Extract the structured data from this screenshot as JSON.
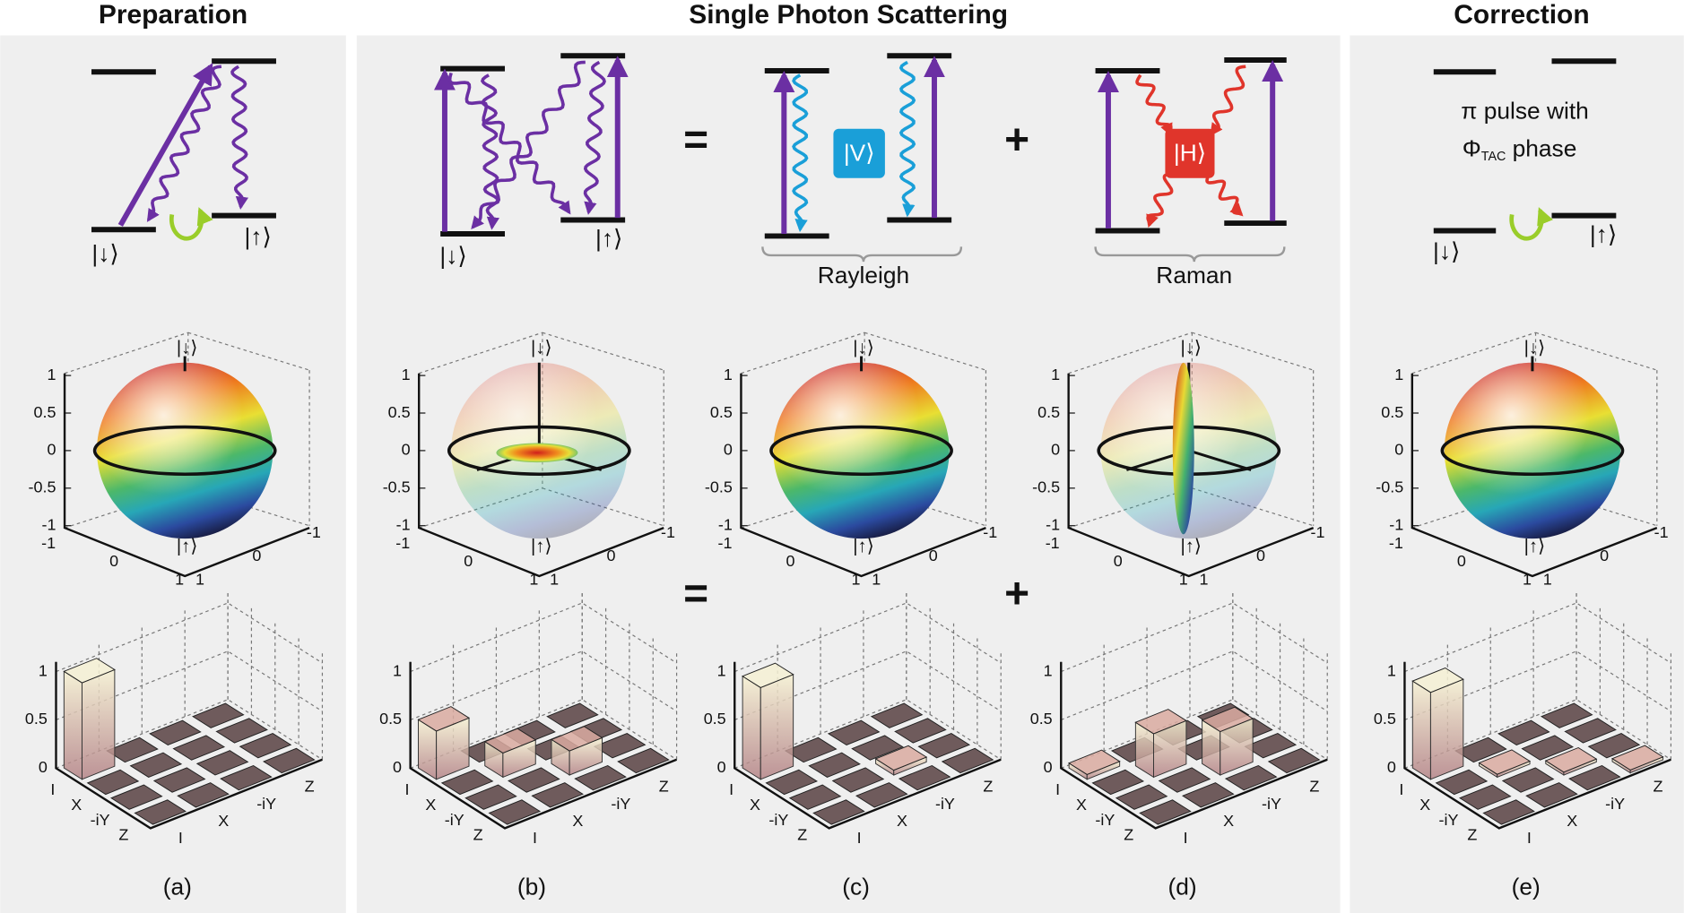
{
  "header": {
    "preparation": "Preparation",
    "scattering": "Single Photon Scattering",
    "correction": "Correction"
  },
  "states": {
    "down": "|↓⟩",
    "up": "|↑⟩",
    "v": "|V⟩",
    "h": "|H⟩"
  },
  "operators": {
    "equals": "=",
    "plus": "+"
  },
  "braces": {
    "rayleigh": "Rayleigh",
    "raman": "Raman"
  },
  "correction": {
    "line1": "π pulse with",
    "symbol": "Φ",
    "subscript": "TAC",
    "line2": "phase"
  },
  "sphere_axes": {
    "z_ticks": [
      1,
      0.5,
      0,
      -0.5,
      -1
    ],
    "x_ticks": [
      -1,
      0,
      1
    ],
    "y_ticks": [
      1,
      0,
      -1
    ]
  },
  "bar_axes": {
    "z_ticks": [
      1,
      0.5,
      0
    ],
    "basis": [
      "I",
      "X",
      "-iY",
      "Z"
    ]
  },
  "panels": [
    {
      "label": "(a)",
      "matrix": [
        [
          1,
          0,
          0,
          0
        ],
        [
          0,
          0,
          0,
          0
        ],
        [
          0,
          0,
          0,
          0
        ],
        [
          0,
          0,
          0,
          0
        ]
      ]
    },
    {
      "label": "(b)",
      "matrix": [
        [
          0.5,
          0,
          0,
          0
        ],
        [
          0,
          0.25,
          0,
          0
        ],
        [
          0,
          0,
          0.25,
          0
        ],
        [
          0,
          0,
          0,
          0
        ]
      ]
    },
    {
      "label": "(c)",
      "matrix": [
        [
          0.95,
          0,
          0,
          0
        ],
        [
          0,
          0,
          0,
          0
        ],
        [
          0,
          0,
          0.05,
          0
        ],
        [
          0,
          0,
          0,
          0
        ]
      ]
    },
    {
      "label": "(d)",
      "matrix": [
        [
          0.05,
          0,
          0,
          0
        ],
        [
          0,
          0.45,
          0,
          0
        ],
        [
          0,
          0,
          0.45,
          0
        ],
        [
          0,
          0,
          0,
          0
        ]
      ]
    },
    {
      "label": "(e)",
      "matrix": [
        [
          0.9,
          0,
          0,
          0
        ],
        [
          0,
          0.03,
          0,
          0
        ],
        [
          0,
          0,
          0.03,
          0
        ],
        [
          0,
          0,
          0,
          0.03
        ]
      ]
    }
  ]
}
